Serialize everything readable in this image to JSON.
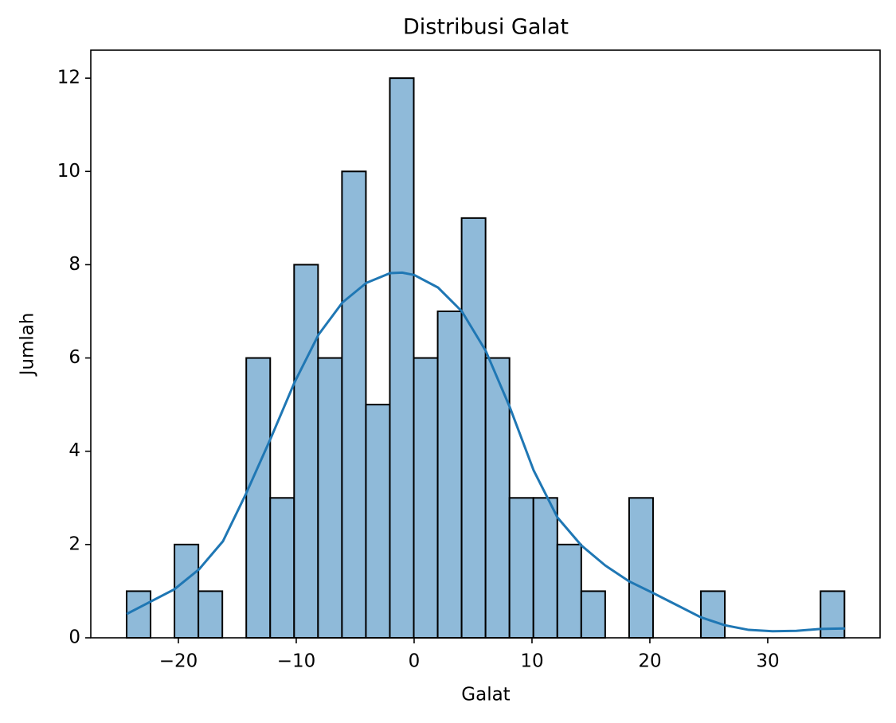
{
  "chart_data": {
    "type": "histogram",
    "title": "Distribusi Galat",
    "x_label": "Galat",
    "y_label": "Jumlah",
    "bins": [
      -24.39,
      -22.36,
      -20.33,
      -18.3,
      -16.27,
      -14.24,
      -12.21,
      -10.18,
      -8.15,
      -6.12,
      -4.09,
      -2.06,
      -0.03,
      2.0,
      4.03,
      6.06,
      8.09,
      10.12,
      12.15,
      14.18,
      16.21,
      18.24,
      20.27,
      22.3,
      24.33,
      26.36,
      28.39,
      30.42,
      32.45,
      34.48,
      36.51
    ],
    "values": [
      1,
      0,
      2,
      1,
      0,
      6,
      3,
      8,
      6,
      10,
      5,
      12,
      6,
      7,
      9,
      6,
      3,
      3,
      2,
      1,
      0,
      3,
      0,
      0,
      1,
      0,
      0,
      0,
      0,
      1
    ],
    "color": "#8fbad9",
    "edge_color": "#000000",
    "line": {
      "color": "#1f77b4",
      "x": [
        -24.39,
        -20.34,
        -18.24,
        -16.22,
        -14.26,
        -12.16,
        -10.14,
        -8.11,
        -6.08,
        -4.05,
        -2.03,
        -1.01,
        0,
        2.03,
        4.05,
        6.08,
        8.11,
        10.14,
        12.16,
        14.19,
        16.22,
        18.24,
        20.27,
        22.3,
        24.32,
        26.35,
        28.38,
        30.41,
        32.43,
        34.46,
        36.55
      ],
      "values": [
        0.51,
        1.04,
        1.47,
        2.07,
        3.09,
        4.28,
        5.48,
        6.5,
        7.19,
        7.61,
        7.82,
        7.83,
        7.78,
        7.51,
        7.0,
        6.15,
        4.95,
        3.59,
        2.58,
        1.98,
        1.55,
        1.21,
        0.96,
        0.7,
        0.44,
        0.27,
        0.17,
        0.14,
        0.15,
        0.19,
        0.2
      ]
    },
    "xlim": [
      -27.43,
      39.53
    ],
    "xticks": [
      {
        "value": -20,
        "label": "−20"
      },
      {
        "value": -10,
        "label": "−10"
      },
      0,
      10,
      20,
      30
    ],
    "ylim": [
      0,
      12.6
    ],
    "yticks": [
      0,
      2,
      4,
      6,
      8,
      10,
      12
    ],
    "grid": false
  }
}
